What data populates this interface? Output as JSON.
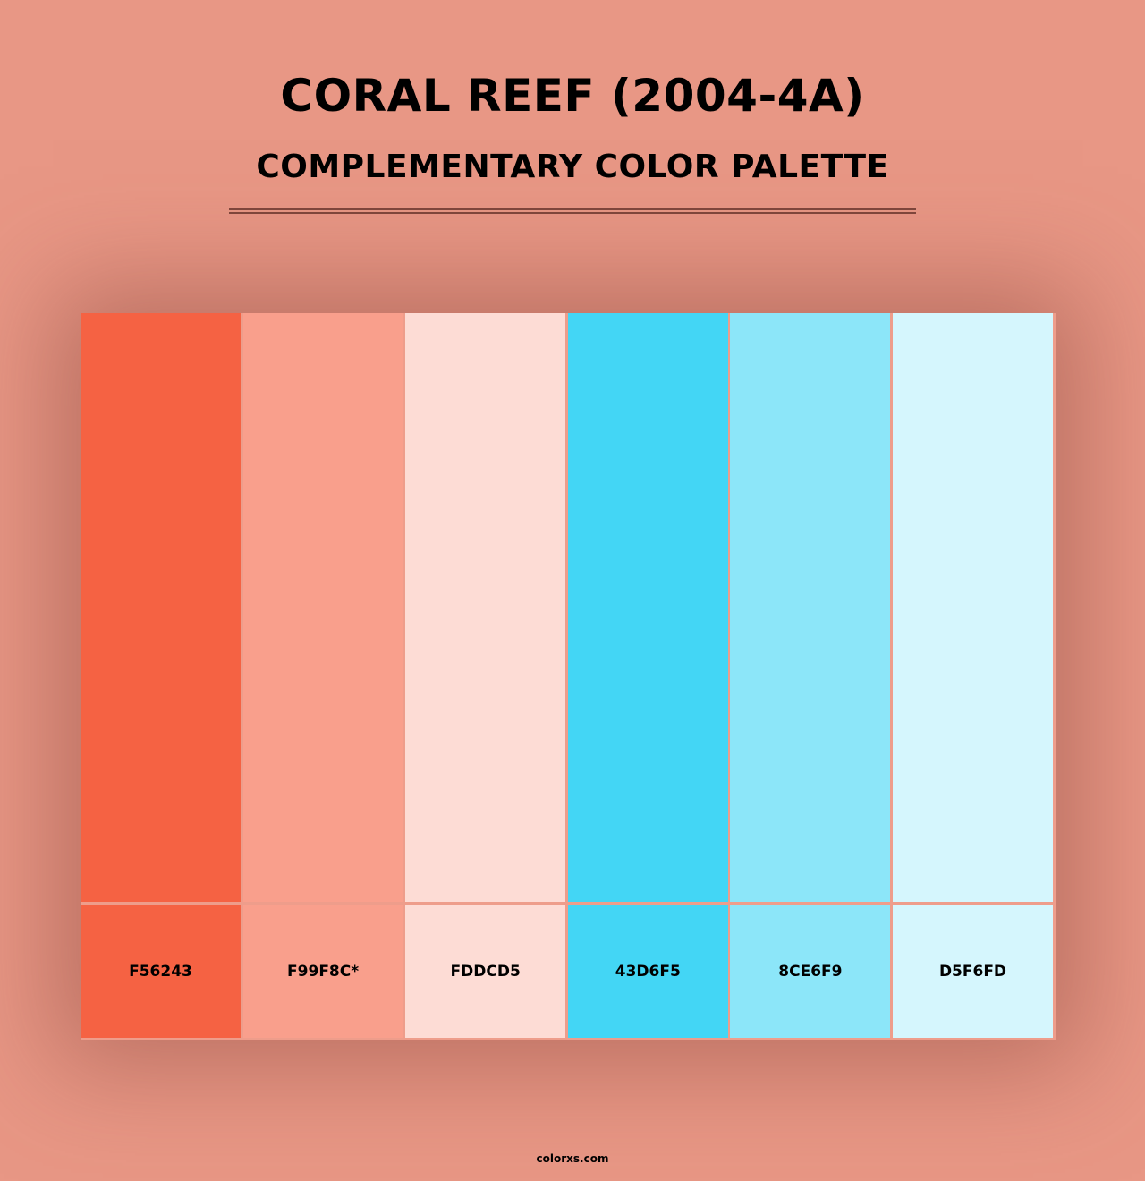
{
  "title": "CORAL REEF (2004-4A)",
  "subtitle": "COMPLEMENTARY COLOR PALETTE",
  "background_color": "#E89785",
  "colors": [
    {
      "hex": "#F56243",
      "label": "F56243"
    },
    {
      "hex": "#F99F8C",
      "label": "F99F8C*"
    },
    {
      "hex": "#FDDCD5",
      "label": "FDDCD5"
    },
    {
      "hex": "#43D6F5",
      "label": "43D6F5"
    },
    {
      "hex": "#8CE6F9",
      "label": "8CE6F9"
    },
    {
      "hex": "#D5F6FD",
      "label": "D5F6FD"
    }
  ],
  "footer": "colorxs.com"
}
